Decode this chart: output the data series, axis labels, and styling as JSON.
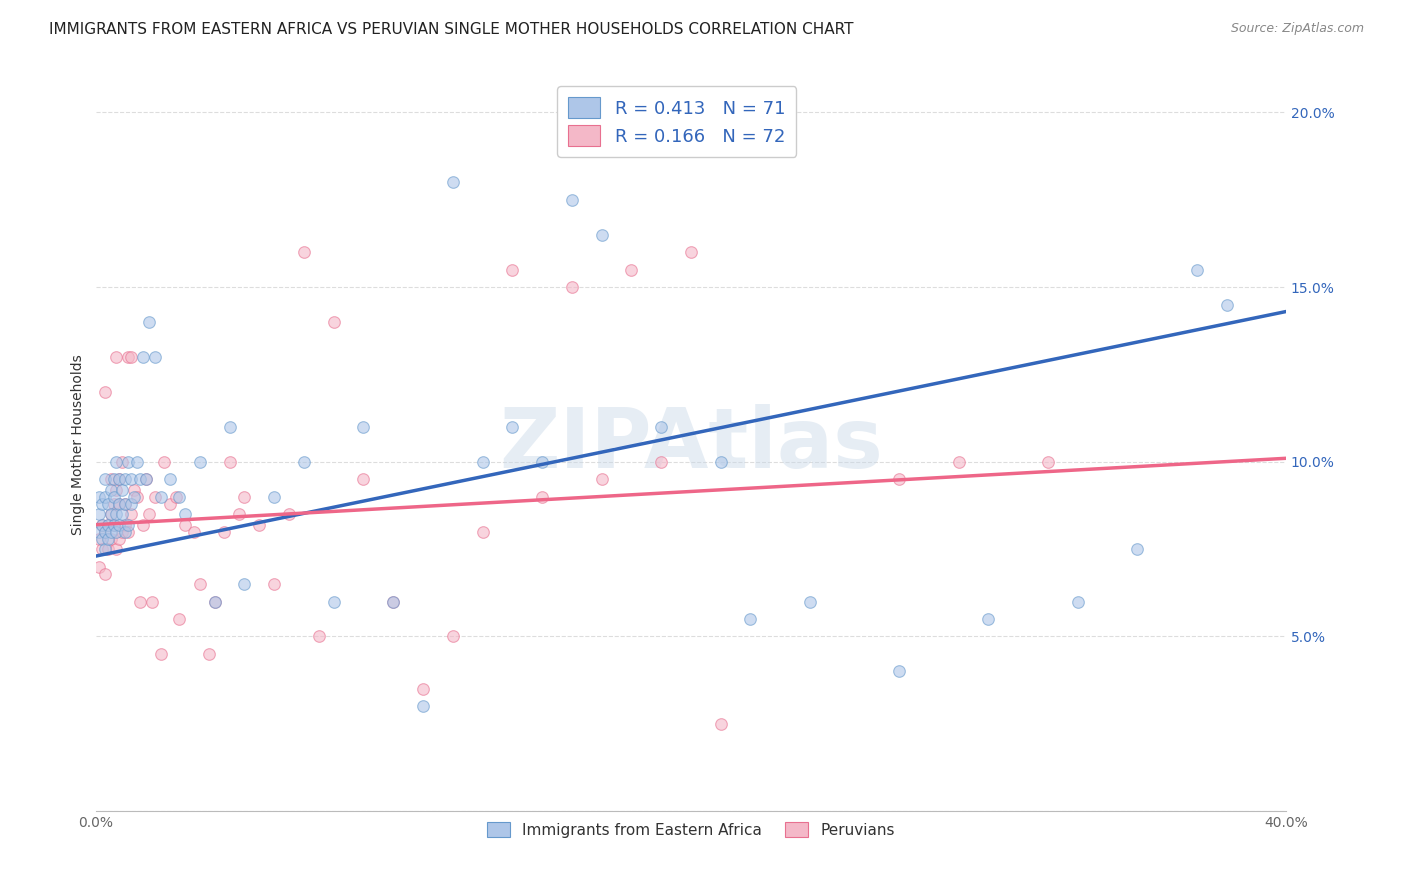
{
  "title": "IMMIGRANTS FROM EASTERN AFRICA VS PERUVIAN SINGLE MOTHER HOUSEHOLDS CORRELATION CHART",
  "source": "Source: ZipAtlas.com",
  "ylabel": "Single Mother Households",
  "blue_color": "#AEC6E8",
  "pink_color": "#F4B8C8",
  "blue_edge_color": "#6699CC",
  "pink_edge_color": "#E87090",
  "blue_line_color": "#3366BB",
  "pink_line_color": "#EE6688",
  "legend_text_color": "#3366BB",
  "watermark": "ZIPAtlas",
  "x_min": 0.0,
  "x_max": 0.4,
  "y_min": 0.0,
  "y_max": 0.21,
  "blue_scatter_x": [
    0.001,
    0.001,
    0.001,
    0.002,
    0.002,
    0.002,
    0.003,
    0.003,
    0.003,
    0.003,
    0.004,
    0.004,
    0.004,
    0.005,
    0.005,
    0.005,
    0.006,
    0.006,
    0.006,
    0.007,
    0.007,
    0.007,
    0.008,
    0.008,
    0.008,
    0.009,
    0.009,
    0.01,
    0.01,
    0.01,
    0.011,
    0.011,
    0.012,
    0.012,
    0.013,
    0.014,
    0.015,
    0.016,
    0.017,
    0.018,
    0.02,
    0.022,
    0.025,
    0.028,
    0.03,
    0.035,
    0.04,
    0.045,
    0.05,
    0.06,
    0.07,
    0.08,
    0.09,
    0.1,
    0.11,
    0.12,
    0.13,
    0.14,
    0.15,
    0.16,
    0.17,
    0.19,
    0.21,
    0.22,
    0.24,
    0.27,
    0.3,
    0.33,
    0.35,
    0.37,
    0.38
  ],
  "blue_scatter_y": [
    0.08,
    0.085,
    0.09,
    0.078,
    0.082,
    0.088,
    0.08,
    0.075,
    0.09,
    0.095,
    0.082,
    0.078,
    0.088,
    0.08,
    0.085,
    0.092,
    0.082,
    0.09,
    0.095,
    0.08,
    0.085,
    0.1,
    0.082,
    0.088,
    0.095,
    0.085,
    0.092,
    0.08,
    0.088,
    0.095,
    0.082,
    0.1,
    0.088,
    0.095,
    0.09,
    0.1,
    0.095,
    0.13,
    0.095,
    0.14,
    0.13,
    0.09,
    0.095,
    0.09,
    0.085,
    0.1,
    0.06,
    0.11,
    0.065,
    0.09,
    0.1,
    0.06,
    0.11,
    0.06,
    0.03,
    0.18,
    0.1,
    0.11,
    0.1,
    0.175,
    0.165,
    0.11,
    0.1,
    0.055,
    0.06,
    0.04,
    0.055,
    0.06,
    0.075,
    0.155,
    0.145
  ],
  "pink_scatter_x": [
    0.001,
    0.001,
    0.002,
    0.002,
    0.003,
    0.003,
    0.003,
    0.004,
    0.004,
    0.005,
    0.005,
    0.005,
    0.006,
    0.006,
    0.007,
    0.007,
    0.007,
    0.008,
    0.008,
    0.008,
    0.009,
    0.009,
    0.01,
    0.01,
    0.011,
    0.011,
    0.012,
    0.012,
    0.013,
    0.014,
    0.015,
    0.016,
    0.017,
    0.018,
    0.019,
    0.02,
    0.022,
    0.023,
    0.025,
    0.027,
    0.028,
    0.03,
    0.033,
    0.035,
    0.038,
    0.04,
    0.043,
    0.045,
    0.048,
    0.05,
    0.055,
    0.06,
    0.065,
    0.07,
    0.075,
    0.08,
    0.09,
    0.1,
    0.11,
    0.12,
    0.13,
    0.14,
    0.15,
    0.16,
    0.17,
    0.18,
    0.19,
    0.2,
    0.21,
    0.27,
    0.29,
    0.32
  ],
  "pink_scatter_y": [
    0.07,
    0.078,
    0.075,
    0.082,
    0.068,
    0.08,
    0.12,
    0.075,
    0.082,
    0.078,
    0.085,
    0.095,
    0.082,
    0.088,
    0.075,
    0.092,
    0.13,
    0.078,
    0.095,
    0.088,
    0.08,
    0.1,
    0.082,
    0.088,
    0.08,
    0.13,
    0.085,
    0.13,
    0.092,
    0.09,
    0.06,
    0.082,
    0.095,
    0.085,
    0.06,
    0.09,
    0.045,
    0.1,
    0.088,
    0.09,
    0.055,
    0.082,
    0.08,
    0.065,
    0.045,
    0.06,
    0.08,
    0.1,
    0.085,
    0.09,
    0.082,
    0.065,
    0.085,
    0.16,
    0.05,
    0.14,
    0.095,
    0.06,
    0.035,
    0.05,
    0.08,
    0.155,
    0.09,
    0.15,
    0.095,
    0.155,
    0.1,
    0.16,
    0.025,
    0.095,
    0.1,
    0.1
  ],
  "blue_trend_y_start": 0.073,
  "blue_trend_y_end": 0.143,
  "pink_trend_y_start": 0.082,
  "pink_trend_y_end": 0.101,
  "ytick_labels": [
    "",
    "5.0%",
    "10.0%",
    "15.0%",
    "20.0%"
  ],
  "ytick_values": [
    0.0,
    0.05,
    0.1,
    0.15,
    0.2
  ],
  "xtick_labels": [
    "0.0%",
    "",
    "",
    "",
    "",
    "",
    "",
    "",
    "40.0%"
  ],
  "xtick_values": [
    0.0,
    0.05,
    0.1,
    0.15,
    0.2,
    0.25,
    0.3,
    0.35,
    0.4
  ],
  "grid_color": "#DDDDDD",
  "background_color": "#FFFFFF",
  "title_fontsize": 11,
  "axis_label_fontsize": 10,
  "tick_fontsize": 10,
  "marker_size": 70,
  "marker_alpha": 0.6,
  "right_ytick_color": "#3366BB"
}
